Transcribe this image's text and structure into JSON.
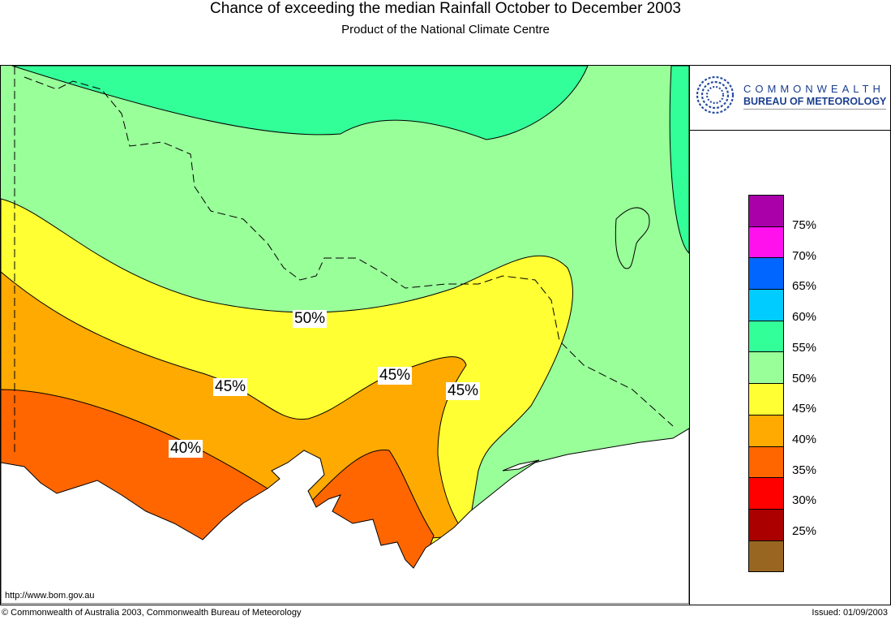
{
  "title": "Chance of exceeding the median Rainfall October to December 2003",
  "subtitle": "Product of the National Climate Centre",
  "logo": {
    "line1": "COMMONWEALTH",
    "line2": "BUREAU OF METEOROLOGY"
  },
  "legend": {
    "colors": [
      "#aa00aa",
      "#ff11ee",
      "#0066ff",
      "#00ccff",
      "#33ff99",
      "#99ff99",
      "#ffff33",
      "#ffaa00",
      "#ff6600",
      "#ff0000",
      "#aa0000",
      "#996622"
    ],
    "labels": [
      "75%",
      "70%",
      "65%",
      "60%",
      "55%",
      "50%",
      "45%",
      "40%",
      "35%",
      "30%",
      "25%"
    ]
  },
  "contour_labels": [
    "50%",
    "45%",
    "45%",
    "45%",
    "40%"
  ],
  "footer": {
    "url": "http://www.bom.gov.au",
    "copyright": "© Commonwealth of Australia 2003, Commonwealth Bureau of Meteorology",
    "issued": "Issued: 01/09/2003"
  }
}
